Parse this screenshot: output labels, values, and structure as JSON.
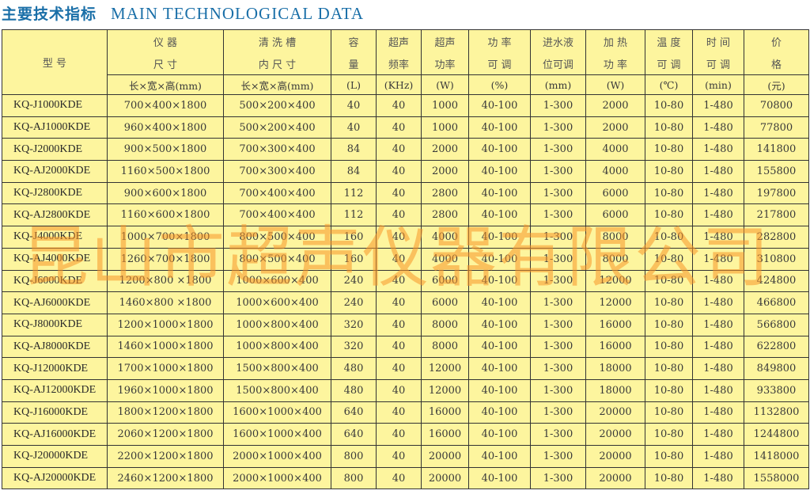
{
  "title": {
    "cn": "主要技术指标",
    "en": "MAIN TECHNOLOGICAL DATA"
  },
  "watermark": "昆山市超声仪器有限公司",
  "headers": {
    "model": "型  号",
    "columns": [
      {
        "line1": "仪  器",
        "line2": "尺  寸",
        "unit": "长×宽×高(mm)"
      },
      {
        "line1": "清 洗 槽",
        "line2": "内 尺 寸",
        "unit": "长×宽×高(mm)"
      },
      {
        "line1": "容",
        "line2": "量",
        "unit": "(L)"
      },
      {
        "line1": "超声",
        "line2": "频率",
        "unit": "(KHz)"
      },
      {
        "line1": "超声",
        "line2": "功率",
        "unit": "(W)"
      },
      {
        "line1": "功 率",
        "line2": "可 调",
        "unit": "(%)"
      },
      {
        "line1": "进水液",
        "line2": "位可调",
        "unit": "(mm)"
      },
      {
        "line1": "加 热",
        "line2": "功 率",
        "unit": "(W)"
      },
      {
        "line1": "温 度",
        "line2": "可 调",
        "unit": "(℃)"
      },
      {
        "line1": "时 间",
        "line2": "可 调",
        "unit": "(min)"
      },
      {
        "line1": "价",
        "line2": "格",
        "unit": "(元)"
      }
    ]
  },
  "rows": [
    [
      "KQ-J1000KDE",
      "700×400×1800",
      "500×200×400",
      "40",
      "40",
      "1000",
      "40-100",
      "1-300",
      "2000",
      "10-80",
      "1-480",
      "70800"
    ],
    [
      "KQ-AJ1000KDE",
      "960×400×1800",
      "500×200×400",
      "40",
      "40",
      "1000",
      "40-100",
      "1-300",
      "2000",
      "10-80",
      "1-480",
      "77800"
    ],
    [
      "KQ-J2000KDE",
      "900×500×1800",
      "700×300×400",
      "84",
      "40",
      "2000",
      "40-100",
      "1-300",
      "4000",
      "10-80",
      "1-480",
      "141800"
    ],
    [
      "KQ-AJ2000KDE",
      "1160×500×1800",
      "700×300×400",
      "84",
      "40",
      "2000",
      "40-100",
      "1-300",
      "4000",
      "10-80",
      "1-480",
      "155800"
    ],
    [
      "KQ-J2800KDE",
      "900×600×1800",
      "700×400×400",
      "112",
      "40",
      "2800",
      "40-100",
      "1-300",
      "6000",
      "10-80",
      "1-480",
      "197800"
    ],
    [
      "KQ-AJ2800KDE",
      "1160×600×1800",
      "700×400×400",
      "112",
      "40",
      "2800",
      "40-100",
      "1-300",
      "6000",
      "10-80",
      "1-480",
      "217800"
    ],
    [
      "KQ-J4000KDE",
      "1000×700×1800",
      "800×500×400",
      "160",
      "40",
      "4000",
      "40-100",
      "1-300",
      "8000",
      "10-80",
      "1-480",
      "282800"
    ],
    [
      "KQ-AJ4000KDE",
      "1260×700×1800",
      "800×500×400",
      "160",
      "40",
      "4000",
      "40-100",
      "1-300",
      "8000",
      "10-80",
      "1-480",
      "310800"
    ],
    [
      "KQ-J6000KDE",
      "1200×800 ×1800",
      "1000×600×400",
      "240",
      "40",
      "6000",
      "40-100",
      "1-300",
      "12000",
      "10-80",
      "1-480",
      "424800"
    ],
    [
      "KQ-AJ6000KDE",
      "1460×800 ×1800",
      "1000×600×400",
      "240",
      "40",
      "6000",
      "40-100",
      "1-300",
      "12000",
      "10-80",
      "1-480",
      "466800"
    ],
    [
      "KQ-J8000KDE",
      "1200×1000×1800",
      "1000×800×400",
      "320",
      "40",
      "8000",
      "40-100",
      "1-300",
      "16000",
      "10-80",
      "1-480",
      "566800"
    ],
    [
      "KQ-AJ8000KDE",
      "1460×1000×1800",
      "1000×800×400",
      "320",
      "40",
      "8000",
      "40-100",
      "1-300",
      "16000",
      "10-80",
      "1-480",
      "622800"
    ],
    [
      "KQ-J12000KDE",
      "1700×1000×1800",
      "1500×800×400",
      "480",
      "40",
      "12000",
      "40-100",
      "1-300",
      "18000",
      "10-80",
      "1-480",
      "849800"
    ],
    [
      "KQ-AJ12000KDE",
      "1960×1000×1800",
      "1500×800×400",
      "480",
      "40",
      "12000",
      "40-100",
      "1-300",
      "18000",
      "10-80",
      "1-480",
      "933800"
    ],
    [
      "KQ-J16000KDE",
      "1800×1200×1800",
      "1600×1000×400",
      "640",
      "40",
      "16000",
      "40-100",
      "1-300",
      "20000",
      "10-80",
      "1-480",
      "1132800"
    ],
    [
      "KQ-AJ16000KDE",
      "2060×1200×1800",
      "1600×1000×400",
      "640",
      "40",
      "16000",
      "40-100",
      "1-300",
      "20000",
      "10-80",
      "1-480",
      "1244800"
    ],
    [
      "KQ-J20000KDE",
      "2200×1200×1800",
      "2000×1000×400",
      "800",
      "40",
      "20000",
      "40-100",
      "1-300",
      "20000",
      "10-80",
      "1-480",
      "1418000"
    ],
    [
      "KQ-AJ20000KDE",
      "2460×1200×1800",
      "2000×1000×400",
      "800",
      "40",
      "20000",
      "40-100",
      "1-300",
      "20000",
      "10-80",
      "1-480",
      "1558000"
    ]
  ]
}
